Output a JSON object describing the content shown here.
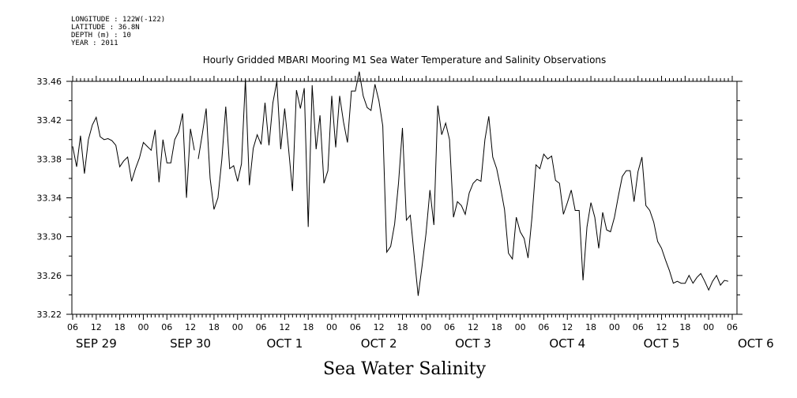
{
  "meta": {
    "longitude": "LONGITUDE : 122W(-122)",
    "latitude": "LATITUDE : 36.8N",
    "depth": "DEPTH (m) : 10",
    "year": "YEAR : 2011"
  },
  "chart_data": {
    "type": "line",
    "title": "Hourly Gridded MBARI Mooring M1 Sea Water Temperature and Salinity Observations",
    "xlabel": "Sea Water Salinity",
    "ylabel": "",
    "ylim": [
      33.22,
      33.46
    ],
    "y_ticks": [
      "33.22",
      "33.26",
      "33.30",
      "33.34",
      "33.38",
      "33.42",
      "33.46"
    ],
    "x_unit": "hours since 2011-09-29 06:00",
    "xlim": [
      0,
      168
    ],
    "hour_ticks": [
      "06",
      "12",
      "18",
      "00",
      "06",
      "12",
      "18",
      "00",
      "06",
      "12",
      "18",
      "00",
      "06",
      "12",
      "18",
      "00",
      "06",
      "12",
      "18",
      "00",
      "06",
      "12",
      "18",
      "00",
      "06",
      "12",
      "18",
      "00",
      "06"
    ],
    "day_labels": [
      "SEP 29",
      "SEP 30",
      "OCT  1",
      "OCT  2",
      "OCT  3",
      "OCT  4",
      "OCT  5",
      "OCT  6"
    ],
    "grid": false,
    "series": [
      {
        "values": [
          [
            0,
            33.393
          ],
          [
            1,
            33.372
          ],
          [
            2,
            33.404
          ],
          [
            3,
            33.365
          ],
          [
            4,
            33.4
          ],
          [
            5,
            33.415
          ],
          [
            6,
            33.423
          ],
          [
            7,
            33.403
          ],
          [
            8,
            33.4
          ],
          [
            9,
            33.401
          ],
          [
            10,
            33.399
          ],
          [
            11,
            33.394
          ],
          [
            12,
            33.372
          ],
          [
            13,
            33.378
          ],
          [
            14,
            33.382
          ],
          [
            15,
            33.357
          ],
          [
            16,
            33.37
          ],
          [
            17,
            33.381
          ],
          [
            18,
            33.397
          ],
          [
            19,
            33.393
          ],
          [
            20,
            33.389
          ],
          [
            21,
            33.41
          ],
          [
            22,
            33.356
          ],
          [
            23,
            33.4
          ],
          [
            24,
            33.376
          ],
          [
            25,
            33.376
          ],
          [
            26,
            33.4
          ],
          [
            27,
            33.408
          ],
          [
            28,
            33.427
          ],
          [
            29,
            33.34
          ],
          [
            30,
            33.411
          ],
          [
            31,
            33.389
          ],
          [
            null,
            null
          ],
          [
            32,
            33.38
          ],
          [
            33,
            33.405
          ],
          [
            34,
            33.432
          ],
          [
            35,
            33.36
          ],
          [
            36,
            33.328
          ],
          [
            37,
            33.34
          ],
          [
            38,
            33.38
          ],
          [
            39,
            33.434
          ],
          [
            40,
            33.37
          ],
          [
            41,
            33.373
          ],
          [
            42,
            33.357
          ],
          [
            43,
            33.375
          ],
          [
            44,
            33.462
          ],
          [
            45,
            33.353
          ],
          [
            46,
            33.391
          ],
          [
            47,
            33.405
          ],
          [
            48,
            33.395
          ],
          [
            49,
            33.438
          ],
          [
            50,
            33.394
          ],
          [
            51,
            33.438
          ],
          [
            52,
            33.46
          ],
          [
            53,
            33.39
          ],
          [
            54,
            33.432
          ],
          [
            55,
            33.39
          ],
          [
            56,
            33.347
          ],
          [
            57,
            33.451
          ],
          [
            58,
            33.432
          ],
          [
            59,
            33.453
          ],
          [
            60,
            33.31
          ],
          [
            61,
            33.456
          ],
          [
            62,
            33.39
          ],
          [
            63,
            33.425
          ],
          [
            64,
            33.355
          ],
          [
            65,
            33.368
          ],
          [
            66,
            33.445
          ],
          [
            67,
            33.392
          ],
          [
            68,
            33.445
          ],
          [
            69,
            33.418
          ],
          [
            70,
            33.397
          ],
          [
            71,
            33.45
          ],
          [
            72,
            33.45
          ],
          [
            73,
            33.47
          ],
          [
            74,
            33.445
          ],
          [
            75,
            33.433
          ],
          [
            76,
            33.43
          ],
          [
            77,
            33.457
          ],
          [
            78,
            33.44
          ],
          [
            79,
            33.414
          ],
          [
            80,
            33.284
          ],
          [
            81,
            33.29
          ],
          [
            82,
            33.313
          ],
          [
            83,
            33.355
          ],
          [
            84,
            33.412
          ],
          [
            85,
            33.317
          ],
          [
            86,
            33.322
          ],
          [
            87,
            33.28
          ],
          [
            88,
            33.239
          ],
          [
            89,
            33.27
          ],
          [
            90,
            33.303
          ],
          [
            91,
            33.348
          ],
          [
            92,
            33.312
          ],
          [
            93,
            33.435
          ],
          [
            94,
            33.405
          ],
          [
            95,
            33.417
          ],
          [
            96,
            33.4
          ],
          [
            97,
            33.32
          ],
          [
            98,
            33.336
          ],
          [
            99,
            33.332
          ],
          [
            100,
            33.323
          ],
          [
            101,
            33.345
          ],
          [
            102,
            33.355
          ],
          [
            103,
            33.359
          ],
          [
            104,
            33.357
          ],
          [
            105,
            33.4
          ],
          [
            106,
            33.424
          ],
          [
            107,
            33.382
          ],
          [
            108,
            33.37
          ],
          [
            109,
            33.35
          ],
          [
            110,
            33.328
          ],
          [
            111,
            33.283
          ],
          [
            112,
            33.277
          ],
          [
            113,
            33.32
          ],
          [
            114,
            33.305
          ],
          [
            115,
            33.298
          ],
          [
            116,
            33.278
          ],
          [
            117,
            33.32
          ],
          [
            118,
            33.374
          ],
          [
            119,
            33.37
          ],
          [
            120,
            33.385
          ],
          [
            121,
            33.38
          ],
          [
            122,
            33.383
          ],
          [
            123,
            33.358
          ],
          [
            124,
            33.355
          ],
          [
            125,
            33.323
          ],
          [
            126,
            33.335
          ],
          [
            127,
            33.348
          ],
          [
            128,
            33.327
          ],
          [
            129,
            33.327
          ],
          [
            130,
            33.255
          ],
          [
            131,
            33.31
          ],
          [
            132,
            33.335
          ],
          [
            133,
            33.32
          ],
          [
            134,
            33.288
          ],
          [
            135,
            33.325
          ],
          [
            136,
            33.307
          ],
          [
            137,
            33.305
          ],
          [
            138,
            33.32
          ],
          [
            139,
            33.342
          ],
          [
            140,
            33.362
          ],
          [
            141,
            33.368
          ],
          [
            142,
            33.368
          ],
          [
            143,
            33.336
          ],
          [
            144,
            33.367
          ],
          [
            145,
            33.382
          ],
          [
            146,
            33.332
          ],
          [
            147,
            33.327
          ],
          [
            148,
            33.315
          ],
          [
            149,
            33.295
          ],
          [
            150,
            33.288
          ],
          [
            151,
            33.276
          ],
          [
            152,
            33.265
          ],
          [
            153,
            33.252
          ],
          [
            154,
            33.254
          ],
          [
            155,
            33.252
          ],
          [
            156,
            33.252
          ],
          [
            157,
            33.26
          ],
          [
            158,
            33.252
          ],
          [
            159,
            33.258
          ],
          [
            160,
            33.262
          ],
          [
            161,
            33.254
          ],
          [
            162,
            33.245
          ],
          [
            163,
            33.254
          ],
          [
            164,
            33.26
          ],
          [
            165,
            33.25
          ],
          [
            166,
            33.255
          ],
          [
            167,
            33.254
          ]
        ]
      }
    ]
  }
}
